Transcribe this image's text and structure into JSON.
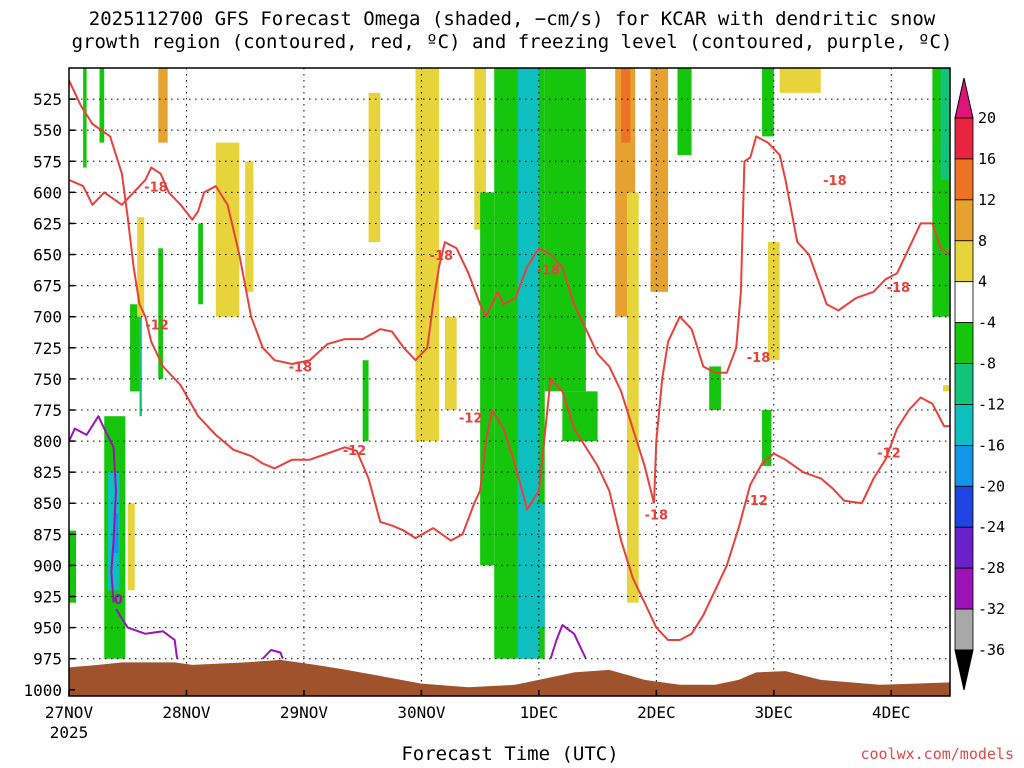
{
  "chart_data": {
    "type": "heatmap",
    "title_line1": "2025112700 GFS Forecast Omega (shaded, −cm/s) for KCAR with dendritic snow",
    "title_line2": "growth region (contoured, red, ºC) and freezing level (contoured, purple, ºC)",
    "xlabel": "Forecast Time (UTC)",
    "ylabel": "",
    "x_ticks": [
      "27NOV",
      "28NOV",
      "29NOV",
      "30NOV",
      "1DEC",
      "2DEC",
      "3DEC",
      "4DEC"
    ],
    "x_tick_year": "2025",
    "y_ticks": [
      "525",
      "550",
      "575",
      "600",
      "625",
      "650",
      "675",
      "700",
      "725",
      "750",
      "775",
      "800",
      "825",
      "850",
      "875",
      "900",
      "925",
      "950",
      "975",
      "1000"
    ],
    "x_range_days": [
      0,
      7.5
    ],
    "y_range_hpa": [
      500,
      1005
    ],
    "grid": "dotted",
    "colorbar": {
      "placement": "right",
      "tick_labels": [
        "20",
        "16",
        "12",
        "8",
        "4",
        "-4",
        "-8",
        "-12",
        "-16",
        "-20",
        "-24",
        "-28",
        "-32",
        "-36"
      ],
      "colors": [
        "#e8253e",
        "#ee7226",
        "#e6a230",
        "#e7d43c",
        "#ffffff",
        "#16c60c",
        "#12c37a",
        "#0fbfbf",
        "#1496e8",
        "#1e44e2",
        "#6a22c8",
        "#9b13b7",
        "#a8a8a8"
      ],
      "end_high_color": "#e0157a",
      "end_low_color": "#000000"
    },
    "contour_labels": [
      {
        "text": "-18",
        "x": 0.74,
        "y": 596
      },
      {
        "text": "-12",
        "x": 0.75,
        "y": 707
      },
      {
        "text": "-18",
        "x": 1.97,
        "y": 741
      },
      {
        "text": "-12",
        "x": 2.43,
        "y": 808
      },
      {
        "text": "-18",
        "x": 3.17,
        "y": 651
      },
      {
        "text": "-12",
        "x": 3.42,
        "y": 782
      },
      {
        "text": "-18",
        "x": 4.08,
        "y": 663
      },
      {
        "text": "-18",
        "x": 5.0,
        "y": 860
      },
      {
        "text": "-18",
        "x": 5.87,
        "y": 733
      },
      {
        "text": "-12",
        "x": 5.85,
        "y": 848
      },
      {
        "text": "-18",
        "x": 6.52,
        "y": 591
      },
      {
        "text": "-18",
        "x": 7.06,
        "y": 677
      },
      {
        "text": "-12",
        "x": 6.98,
        "y": 810
      },
      {
        "text": "0",
        "x": 0.42,
        "y": 928
      }
    ],
    "dgz_upper_minus18": [
      [
        0,
        590
      ],
      [
        0.12,
        595
      ],
      [
        0.2,
        610
      ],
      [
        0.3,
        600
      ],
      [
        0.45,
        610
      ],
      [
        0.55,
        600
      ],
      [
        0.65,
        590
      ],
      [
        0.7,
        580
      ],
      [
        0.78,
        585
      ],
      [
        0.85,
        600
      ],
      [
        0.95,
        610
      ],
      [
        1.05,
        622
      ],
      [
        1.1,
        615
      ],
      [
        1.15,
        600
      ],
      [
        1.25,
        595
      ],
      [
        1.35,
        610
      ],
      [
        1.45,
        650
      ],
      [
        1.55,
        700
      ],
      [
        1.65,
        725
      ],
      [
        1.75,
        735
      ],
      [
        1.9,
        738
      ],
      [
        2.05,
        735
      ],
      [
        2.2,
        722
      ],
      [
        2.35,
        718
      ],
      [
        2.5,
        718
      ],
      [
        2.65,
        710
      ],
      [
        2.75,
        712
      ],
      [
        2.85,
        725
      ],
      [
        2.95,
        735
      ],
      [
        3.05,
        725
      ],
      [
        3.1,
        690
      ],
      [
        3.15,
        660
      ],
      [
        3.2,
        640
      ],
      [
        3.3,
        645
      ],
      [
        3.4,
        665
      ],
      [
        3.5,
        690
      ],
      [
        3.55,
        700
      ],
      [
        3.6,
        690
      ],
      [
        3.65,
        680
      ],
      [
        3.7,
        690
      ],
      [
        3.8,
        685
      ],
      [
        3.9,
        660
      ],
      [
        4.0,
        645
      ],
      [
        4.1,
        650
      ],
      [
        4.2,
        660
      ],
      [
        4.3,
        690
      ],
      [
        4.4,
        710
      ],
      [
        4.5,
        730
      ],
      [
        4.6,
        740
      ],
      [
        4.7,
        760
      ],
      [
        4.8,
        790
      ],
      [
        4.9,
        820
      ],
      [
        4.98,
        850
      ]
    ],
    "dgz_lower_minus12": [
      [
        0,
        510
      ],
      [
        0.1,
        530
      ],
      [
        0.2,
        545
      ],
      [
        0.35,
        555
      ],
      [
        0.45,
        585
      ],
      [
        0.5,
        620
      ],
      [
        0.55,
        660
      ],
      [
        0.6,
        690
      ],
      [
        0.65,
        700
      ],
      [
        0.7,
        720
      ],
      [
        0.8,
        740
      ],
      [
        0.95,
        755
      ],
      [
        1.1,
        780
      ],
      [
        1.25,
        795
      ],
      [
        1.4,
        807
      ],
      [
        1.55,
        812
      ],
      [
        1.65,
        818
      ],
      [
        1.75,
        822
      ],
      [
        1.9,
        815
      ],
      [
        2.05,
        815
      ],
      [
        2.2,
        810
      ],
      [
        2.35,
        805
      ],
      [
        2.45,
        808
      ],
      [
        2.55,
        830
      ],
      [
        2.65,
        865
      ],
      [
        2.75,
        868
      ],
      [
        2.85,
        872
      ],
      [
        2.95,
        878
      ],
      [
        3.1,
        870
      ],
      [
        3.25,
        880
      ],
      [
        3.35,
        875
      ],
      [
        3.45,
        850
      ],
      [
        3.5,
        840
      ],
      [
        3.55,
        800
      ],
      [
        3.6,
        775
      ],
      [
        3.7,
        790
      ],
      [
        3.8,
        820
      ],
      [
        3.9,
        855
      ],
      [
        4.0,
        840
      ],
      [
        4.1,
        750
      ],
      [
        4.2,
        760
      ],
      [
        4.3,
        790
      ],
      [
        4.4,
        805
      ],
      [
        4.5,
        820
      ],
      [
        4.6,
        840
      ],
      [
        4.7,
        880
      ],
      [
        4.8,
        910
      ],
      [
        4.9,
        930
      ],
      [
        5.0,
        950
      ],
      [
        5.1,
        960
      ],
      [
        5.2,
        960
      ],
      [
        5.3,
        955
      ],
      [
        5.4,
        940
      ],
      [
        5.5,
        920
      ],
      [
        5.6,
        900
      ],
      [
        5.7,
        870
      ],
      [
        5.8,
        835
      ],
      [
        5.9,
        818
      ],
      [
        6.0,
        810
      ],
      [
        6.1,
        815
      ],
      [
        6.25,
        825
      ],
      [
        6.4,
        830
      ],
      [
        6.5,
        838
      ],
      [
        6.6,
        848
      ],
      [
        6.75,
        850
      ],
      [
        6.85,
        830
      ],
      [
        6.95,
        815
      ],
      [
        7.05,
        790
      ],
      [
        7.15,
        775
      ],
      [
        7.25,
        765
      ],
      [
        7.35,
        770
      ],
      [
        7.45,
        788
      ],
      [
        7.5,
        788
      ]
    ],
    "dgz_right_minus18": [
      [
        4.98,
        850
      ],
      [
        5.0,
        800
      ],
      [
        5.05,
        750
      ],
      [
        5.1,
        720
      ],
      [
        5.2,
        700
      ],
      [
        5.3,
        710
      ],
      [
        5.4,
        740
      ],
      [
        5.5,
        745
      ],
      [
        5.6,
        745
      ],
      [
        5.68,
        725
      ],
      [
        5.72,
        680
      ],
      [
        5.75,
        575
      ],
      [
        5.8,
        572
      ],
      [
        5.85,
        555
      ],
      [
        5.95,
        560
      ],
      [
        6.05,
        570
      ],
      [
        6.1,
        590
      ],
      [
        6.2,
        640
      ],
      [
        6.3,
        650
      ],
      [
        6.45,
        690
      ],
      [
        6.55,
        695
      ],
      [
        6.7,
        685
      ],
      [
        6.85,
        680
      ],
      [
        6.95,
        670
      ],
      [
        7.05,
        665
      ],
      [
        7.15,
        645
      ],
      [
        7.25,
        625
      ],
      [
        7.35,
        625
      ],
      [
        7.42,
        645
      ],
      [
        7.5,
        650
      ]
    ],
    "freezing_level_segments": [
      [
        [
          0,
          800
        ],
        [
          0.05,
          790
        ],
        [
          0.15,
          795
        ],
        [
          0.25,
          780
        ],
        [
          0.3,
          790
        ],
        [
          0.38,
          805
        ],
        [
          0.4,
          840
        ],
        [
          0.38,
          880
        ],
        [
          0.36,
          905
        ],
        [
          0.38,
          930
        ]
      ],
      [
        [
          0.4,
          935
        ],
        [
          0.5,
          950
        ],
        [
          0.65,
          955
        ],
        [
          0.8,
          953
        ],
        [
          0.9,
          960
        ],
        [
          0.92,
          975
        ]
      ],
      [
        [
          1.65,
          975
        ],
        [
          1.72,
          968
        ],
        [
          1.8,
          970
        ],
        [
          1.82,
          975
        ]
      ],
      [
        [
          4.1,
          975
        ],
        [
          4.15,
          960
        ],
        [
          4.2,
          948
        ],
        [
          4.3,
          955
        ],
        [
          4.35,
          965
        ],
        [
          4.4,
          975
        ]
      ]
    ],
    "terrain_top_hpa": [
      [
        0,
        982
      ],
      [
        0.25,
        980
      ],
      [
        0.45,
        978
      ],
      [
        0.9,
        978
      ],
      [
        1.05,
        980
      ],
      [
        1.5,
        978
      ],
      [
        1.8,
        976
      ],
      [
        2.1,
        980
      ],
      [
        2.3,
        983
      ],
      [
        2.6,
        988
      ],
      [
        3.0,
        995
      ],
      [
        3.4,
        998
      ],
      [
        3.8,
        996
      ],
      [
        4.1,
        990
      ],
      [
        4.3,
        986
      ],
      [
        4.6,
        984
      ],
      [
        4.9,
        992
      ],
      [
        5.2,
        996
      ],
      [
        5.5,
        996
      ],
      [
        5.7,
        992
      ],
      [
        5.85,
        986
      ],
      [
        6.1,
        985
      ],
      [
        6.4,
        992
      ],
      [
        6.9,
        996
      ],
      [
        7.2,
        995
      ],
      [
        7.5,
        994
      ]
    ],
    "omega_features": [
      {
        "x0": 0.0,
        "x1": 0.06,
        "y0": 872,
        "y1": 930,
        "value": -6
      },
      {
        "x0": 0.12,
        "x1": 0.15,
        "y0": 500,
        "y1": 580,
        "value": -6
      },
      {
        "x0": 0.26,
        "x1": 0.3,
        "y0": 500,
        "y1": 560,
        "value": -6
      },
      {
        "x0": 0.3,
        "x1": 0.48,
        "y0": 780,
        "y1": 975,
        "value": -6
      },
      {
        "x0": 0.33,
        "x1": 0.43,
        "y0": 825,
        "y1": 920,
        "value": -14
      },
      {
        "x0": 0.38,
        "x1": 0.42,
        "y0": 858,
        "y1": 890,
        "value": -17
      },
      {
        "x0": 0.52,
        "x1": 0.6,
        "y0": 690,
        "y1": 760,
        "value": -6
      },
      {
        "x0": 0.6,
        "x1": 0.62,
        "y0": 700,
        "y1": 780,
        "value": -10
      },
      {
        "x0": 0.76,
        "x1": 0.8,
        "y0": 645,
        "y1": 750,
        "value": -6
      },
      {
        "x0": 0.76,
        "x1": 0.84,
        "y0": 500,
        "y1": 560,
        "value": 10
      },
      {
        "x0": 0.58,
        "x1": 0.64,
        "y0": 620,
        "y1": 700,
        "value": 5
      },
      {
        "x0": 0.5,
        "x1": 0.56,
        "y0": 850,
        "y1": 920,
        "value": 5
      },
      {
        "x0": 1.25,
        "x1": 1.45,
        "y0": 560,
        "y1": 700,
        "value": 5
      },
      {
        "x0": 1.5,
        "x1": 1.57,
        "y0": 575,
        "y1": 680,
        "value": 5
      },
      {
        "x0": 1.1,
        "x1": 1.14,
        "y0": 625,
        "y1": 690,
        "value": -6
      },
      {
        "x0": 2.5,
        "x1": 2.55,
        "y0": 735,
        "y1": 800,
        "value": -6
      },
      {
        "x0": 2.55,
        "x1": 2.65,
        "y0": 520,
        "y1": 640,
        "value": 5
      },
      {
        "x0": 2.95,
        "x1": 3.15,
        "y0": 500,
        "y1": 800,
        "value": 8
      },
      {
        "x0": 3.2,
        "x1": 3.3,
        "y0": 700,
        "y1": 775,
        "value": 5
      },
      {
        "x0": 3.45,
        "x1": 3.55,
        "y0": 500,
        "y1": 630,
        "value": 5
      },
      {
        "x0": 3.5,
        "x1": 3.62,
        "y0": 600,
        "y1": 900,
        "value": -6
      },
      {
        "x0": 3.62,
        "x1": 4.05,
        "y0": 500,
        "y1": 975,
        "value": -6
      },
      {
        "x0": 3.82,
        "x1": 4.0,
        "y0": 500,
        "y1": 975,
        "value": -13
      },
      {
        "x0": 3.95,
        "x1": 4.05,
        "y0": 850,
        "y1": 950,
        "value": -15
      },
      {
        "x0": 4.05,
        "x1": 4.4,
        "y0": 500,
        "y1": 760,
        "value": -6
      },
      {
        "x0": 4.2,
        "x1": 4.5,
        "y0": 760,
        "y1": 800,
        "value": -6
      },
      {
        "x0": 4.65,
        "x1": 4.82,
        "y0": 500,
        "y1": 700,
        "value": 9
      },
      {
        "x0": 4.7,
        "x1": 4.78,
        "y0": 500,
        "y1": 560,
        "value": 13
      },
      {
        "x0": 4.75,
        "x1": 4.85,
        "y0": 600,
        "y1": 930,
        "value": 5
      },
      {
        "x0": 4.95,
        "x1": 5.1,
        "y0": 500,
        "y1": 680,
        "value": 9
      },
      {
        "x0": 5.18,
        "x1": 5.3,
        "y0": 500,
        "y1": 570,
        "value": -6
      },
      {
        "x0": 5.45,
        "x1": 5.55,
        "y0": 740,
        "y1": 775,
        "value": -6
      },
      {
        "x0": 5.9,
        "x1": 6.0,
        "y0": 500,
        "y1": 555,
        "value": -6
      },
      {
        "x0": 5.9,
        "x1": 5.98,
        "y0": 775,
        "y1": 820,
        "value": -6
      },
      {
        "x0": 5.95,
        "x1": 6.05,
        "y0": 640,
        "y1": 735,
        "value": 5
      },
      {
        "x0": 7.35,
        "x1": 7.5,
        "y0": 500,
        "y1": 700,
        "value": -6
      },
      {
        "x0": 7.42,
        "x1": 7.5,
        "y0": 500,
        "y1": 590,
        "value": -10
      },
      {
        "x0": 7.44,
        "x1": 7.5,
        "y0": 755,
        "y1": 760,
        "value": 5
      },
      {
        "x0": 6.05,
        "x1": 6.4,
        "y0": 500,
        "y1": 520,
        "value": 5
      }
    ]
  },
  "credit": "coolwx.com/models",
  "colors": {
    "dgz_line": "#e8413c",
    "freezing_line": "#9b13b7",
    "terrain": "#a0522d",
    "grid": "#000000"
  }
}
